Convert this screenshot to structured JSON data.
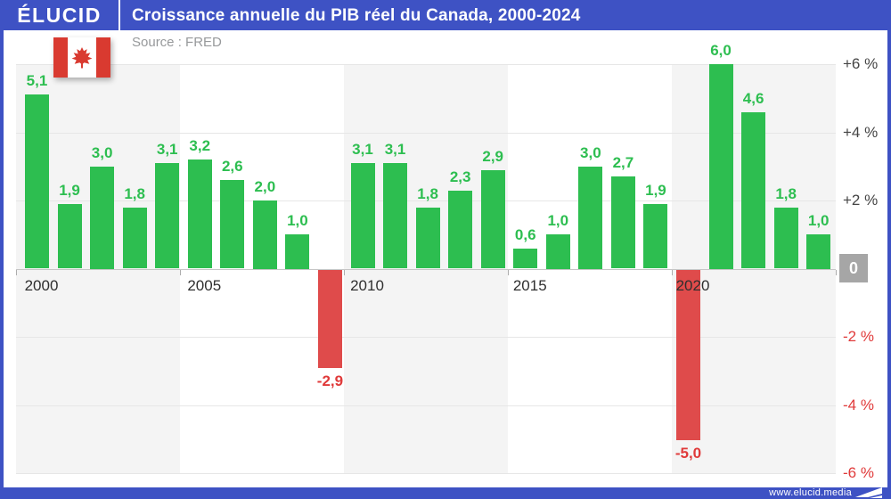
{
  "header": {
    "logo": "ÉLUCID",
    "title": "Croissance annuelle du PIB réel du Canada, 2000-2024"
  },
  "source_label": "Source : FRED",
  "footer": {
    "url": "www.elucid.media"
  },
  "icons": {
    "flag": "canada-flag",
    "footer_logo": "elucid-arrow"
  },
  "colors": {
    "frame_blue": "#3E52C4",
    "bar_positive": "#2DBE50",
    "bar_negative": "#DF4B4B",
    "label_positive": "#2DBE50",
    "label_negative": "#E03A3A",
    "band_gray": "#F4F4F4",
    "flag_red": "#D93A30",
    "zero_badge_bg": "#A6A6A6"
  },
  "chart_data": {
    "type": "bar",
    "title": "Croissance annuelle du PIB réel du Canada, 2000-2024",
    "categories": [
      2000,
      2001,
      2002,
      2003,
      2004,
      2005,
      2006,
      2007,
      2008,
      2009,
      2010,
      2011,
      2012,
      2013,
      2014,
      2015,
      2016,
      2017,
      2018,
      2019,
      2020,
      2021,
      2022,
      2023,
      2024
    ],
    "values": [
      5.1,
      1.9,
      3.0,
      1.8,
      3.1,
      3.2,
      2.6,
      2.0,
      1.0,
      -2.9,
      3.1,
      3.1,
      1.8,
      2.3,
      2.9,
      0.6,
      1.0,
      3.0,
      2.7,
      1.9,
      -5.0,
      6.0,
      4.6,
      1.8,
      1.0
    ],
    "value_labels": [
      "5,1",
      "1,9",
      "3,0",
      "1,8",
      "3,1",
      "3,2",
      "2,6",
      "2,0",
      "1,0",
      "-2,9",
      "3,1",
      "3,1",
      "1,8",
      "2,3",
      "2,9",
      "0,6",
      "1,0",
      "3,0",
      "2,7",
      "1,9",
      "-5,0",
      "6,0",
      "4,6",
      "1,8",
      "1,0"
    ],
    "x_tick_labels": [
      "2000",
      "2005",
      "2010",
      "2015",
      "2020"
    ],
    "y_tick_labels": [
      "+6 %",
      "+4 %",
      "+2 %",
      "0",
      "-2 %",
      "-4 %",
      "-6 %"
    ],
    "y_tick_values": [
      6,
      4,
      2,
      0,
      -2,
      -4,
      -6
    ],
    "ylim": [
      -6,
      6
    ],
    "xlabel": "",
    "ylabel": "",
    "grid": true,
    "legend": "none",
    "units": "%"
  }
}
